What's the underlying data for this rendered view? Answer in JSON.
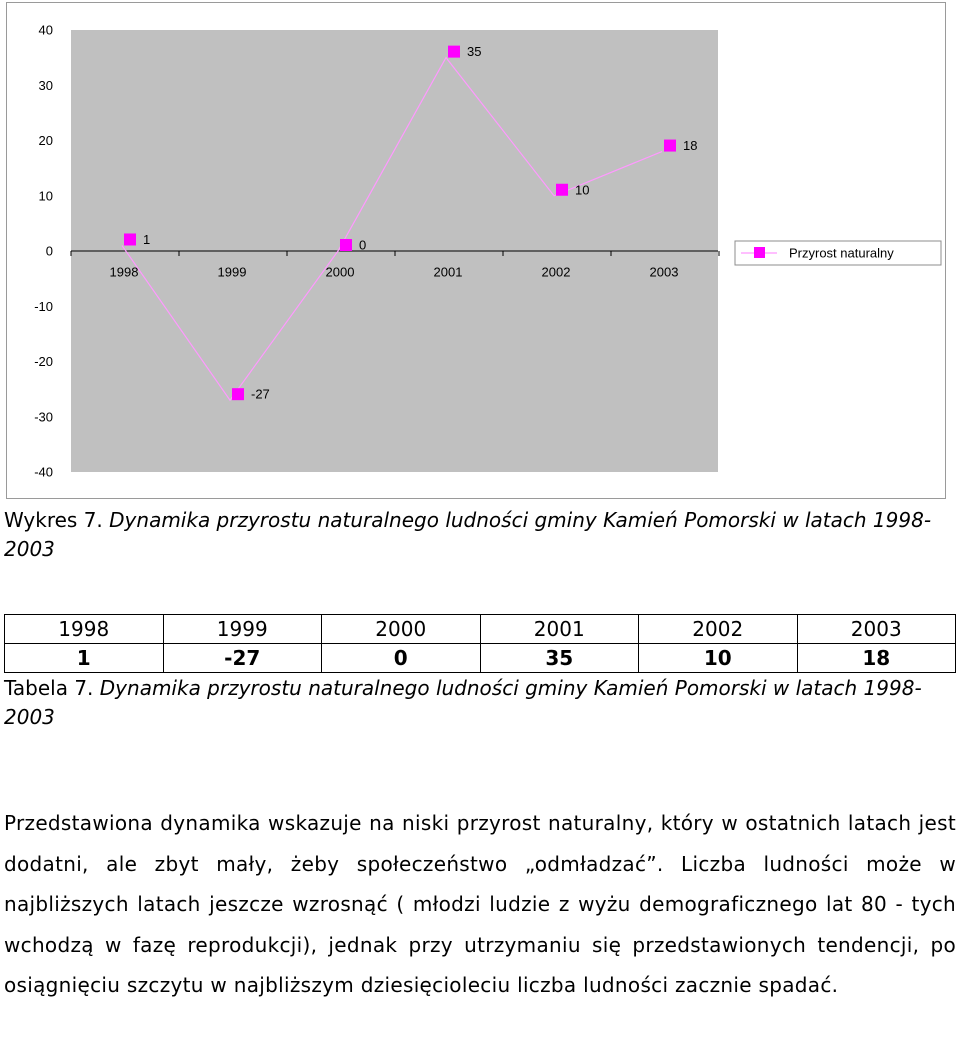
{
  "chart_data": {
    "type": "line",
    "categories": [
      "1998",
      "1999",
      "2000",
      "2001",
      "2002",
      "2003"
    ],
    "series": [
      {
        "name": "Przyrost naturalny",
        "values": [
          1,
          -27,
          0,
          35,
          10,
          18
        ],
        "color": "#ff00ff"
      }
    ],
    "ylim": [
      -40,
      40
    ],
    "yticks": [
      "40",
      "30",
      "20",
      "10",
      "0",
      "-10",
      "-20",
      "-30",
      "-40"
    ],
    "data_labels": [
      "1",
      "-27",
      "0",
      "35",
      "10",
      "18"
    ],
    "plot_background": "#c0c0c0",
    "line_color": "#ff99ff",
    "grid": false,
    "legend_position": "right"
  },
  "chart_caption": {
    "prefix": "Wykres 7.",
    "text": "Dynamika przyrostu naturalnego ludności gminy Kamień Pomorski w latach 1998-2003"
  },
  "table": {
    "years": [
      "1998",
      "1999",
      "2000",
      "2001",
      "2002",
      "2003"
    ],
    "values": [
      "1",
      "-27",
      "0",
      "35",
      "10",
      "18"
    ]
  },
  "table_caption": {
    "prefix": "Tabela 7.",
    "text": "Dynamika przyrostu naturalnego ludności gminy Kamień Pomorski w latach 1998-2003"
  },
  "paragraph": "Przedstawiona dynamika wskazuje na niski przyrost naturalny, który w ostatnich latach jest dodatni, ale zbyt mały, żeby społeczeństwo „odmładzać”. Liczba ludności może w najbliższych latach jeszcze wzrosnąć ( młodzi ludzie z wyżu demograficznego lat 80 - tych wchodzą  w fazę reprodukcji), jednak przy utrzymaniu się przedstawionych tendencji, po osiągnięciu szczytu w najbliższym dziesięcioleciu liczba ludności zacznie spadać."
}
